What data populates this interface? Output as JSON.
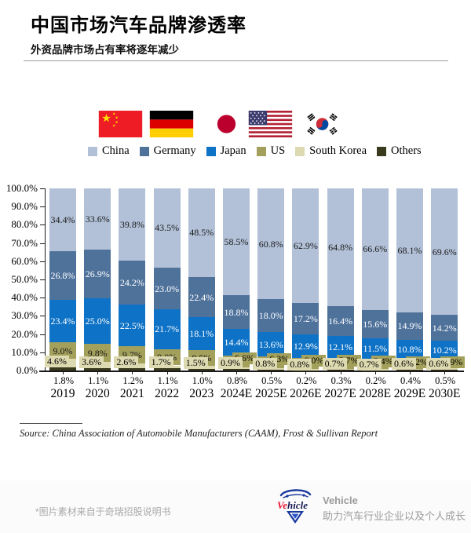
{
  "header": {
    "title": "中国市场汽车品牌渗透率",
    "subtitle": "外资品牌市场占有率将逐年减少"
  },
  "flags": [
    "china-flag",
    "germany-flag",
    "japan-flag",
    "us-flag",
    "south-korea-flag"
  ],
  "legend": [
    {
      "label": "China",
      "color": "#b2c1d8"
    },
    {
      "label": "Germany",
      "color": "#4f729b"
    },
    {
      "label": "Japan",
      "color": "#0e72c6"
    },
    {
      "label": "US",
      "color": "#a3a05c"
    },
    {
      "label": "South Korea",
      "color": "#ddd9b0"
    },
    {
      "label": "Others",
      "color": "#3a3a1e"
    }
  ],
  "chart_data": {
    "type": "bar",
    "stacked": true,
    "title": "中国市场汽车品牌渗透率",
    "xlabel": "",
    "ylabel": "",
    "ylim": [
      0,
      100
    ],
    "grid": false,
    "legend_position": "top",
    "y_ticks": [
      "100.0%",
      "90.0%",
      "80.0%",
      "70.0%",
      "60.0%",
      "50.0%",
      "40.0%",
      "30.0%",
      "20.0%",
      "10.0%",
      "0.0%"
    ],
    "categories": [
      "2019",
      "2020",
      "2021",
      "2022",
      "2023",
      "2024E",
      "2025E",
      "2026E",
      "2027E",
      "2028E",
      "2029E",
      "2030E"
    ],
    "series": [
      {
        "name": "China",
        "color": "#b2c1d8",
        "label_color": "#1a1a1a",
        "values": [
          34.4,
          33.6,
          39.8,
          43.5,
          48.5,
          58.5,
          60.8,
          62.9,
          64.8,
          66.6,
          68.1,
          69.6
        ]
      },
      {
        "name": "Germany",
        "color": "#4f729b",
        "label_color": "#ffffff",
        "values": [
          26.8,
          26.9,
          24.2,
          23.0,
          22.4,
          18.8,
          18.0,
          17.2,
          16.4,
          15.6,
          14.9,
          14.2
        ]
      },
      {
        "name": "Japan",
        "color": "#0e72c6",
        "label_color": "#ffffff",
        "values": [
          23.4,
          25.0,
          22.5,
          21.7,
          18.1,
          14.4,
          13.6,
          12.9,
          12.1,
          11.5,
          10.8,
          10.2
        ]
      },
      {
        "name": "US",
        "color": "#a3a05c",
        "label_color": "#1a1a1a",
        "values": [
          9.0,
          9.8,
          9.7,
          9.0,
          8.5,
          6.6,
          6.3,
          6.0,
          5.7,
          5.4,
          5.2,
          4.9
        ]
      },
      {
        "name": "South Korea",
        "color": "#ddd9b0",
        "label_color": "#1a1a1a",
        "values": [
          4.6,
          3.6,
          2.6,
          1.7,
          1.5,
          0.9,
          0.8,
          0.8,
          0.7,
          0.7,
          0.6,
          0.6
        ]
      },
      {
        "name": "Others",
        "color": "#3a3a1e",
        "label_color": "#1a1a1a",
        "values": [
          1.8,
          1.1,
          1.2,
          1.1,
          1.0,
          0.8,
          0.5,
          0.2,
          0.3,
          0.2,
          0.4,
          0.5
        ]
      }
    ]
  },
  "source": {
    "text": "Source: China Association of Automobile Manufacturers (CAAM), Frost & Sullivan Report"
  },
  "footer": {
    "note": "*图片素材来自于奇瑞招股说明书",
    "logo_red": "Ve",
    "logo_dark": "hicle",
    "brand": "Vehicle",
    "tagline": "助力汽车行业企业以及个人成长"
  }
}
